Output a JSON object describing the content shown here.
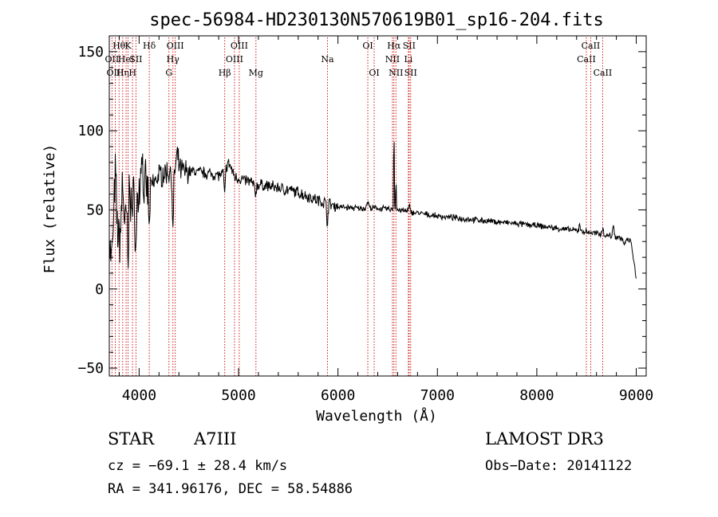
{
  "chart_data": {
    "type": "line",
    "title": "spec-56984-HD230130N570619B01_sp16-204.fits",
    "xlabel": "Wavelength (Å)",
    "ylabel": "Flux (relative)",
    "xlim": [
      3700,
      9100
    ],
    "ylim": [
      -55,
      160
    ],
    "x_ticks": [
      4000,
      5000,
      6000,
      7000,
      8000,
      9000
    ],
    "y_ticks": [
      -50,
      0,
      50,
      100,
      150
    ],
    "continuum": [
      [
        3700,
        35
      ],
      [
        3800,
        45
      ],
      [
        3900,
        52
      ],
      [
        4000,
        60
      ],
      [
        4100,
        63
      ],
      [
        4200,
        72
      ],
      [
        4300,
        74
      ],
      [
        4400,
        75
      ],
      [
        4600,
        74
      ],
      [
        4800,
        72
      ],
      [
        5000,
        70
      ],
      [
        5200,
        66
      ],
      [
        5400,
        64
      ],
      [
        5600,
        61
      ],
      [
        5800,
        56
      ],
      [
        6000,
        52
      ],
      [
        6200,
        51
      ],
      [
        6400,
        51
      ],
      [
        6600,
        50
      ],
      [
        6800,
        48
      ],
      [
        7000,
        46
      ],
      [
        7500,
        43
      ],
      [
        8000,
        40
      ],
      [
        8500,
        36
      ],
      [
        8800,
        33
      ],
      [
        8950,
        30
      ],
      [
        9000,
        5
      ]
    ],
    "features": [
      [
        3720,
        -20,
        10
      ],
      [
        3760,
        30,
        8
      ],
      [
        3800,
        -15,
        10
      ],
      [
        3835,
        20,
        8
      ],
      [
        3860,
        -10,
        8
      ],
      [
        3889,
        -40,
        6
      ],
      [
        3905,
        20,
        6
      ],
      [
        3934,
        -5,
        6
      ],
      [
        3968,
        -35,
        6
      ],
      [
        4026,
        30,
        8
      ],
      [
        4102,
        -25,
        6
      ],
      [
        4340,
        -40,
        6
      ],
      [
        4385,
        8,
        12
      ],
      [
        4861,
        -15,
        6
      ],
      [
        4900,
        8,
        30
      ],
      [
        5169,
        -6,
        10
      ],
      [
        5893,
        -12,
        6
      ],
      [
        6300,
        4,
        10
      ],
      [
        6563,
        55,
        3
      ],
      [
        6583,
        20,
        3
      ],
      [
        6716,
        4,
        6
      ],
      [
        8430,
        5,
        6
      ],
      [
        8660,
        4,
        8
      ],
      [
        8770,
        6,
        8
      ],
      [
        8880,
        -4,
        8
      ]
    ],
    "lines": [
      {
        "x": 3727,
        "label": "OII",
        "row": 1
      },
      {
        "x": 3760,
        "label": "OIII",
        "row": 2
      },
      {
        "x": 3798,
        "label": "Hθ",
        "row": 0
      },
      {
        "x": 3835,
        "label": "Hη",
        "row": 2
      },
      {
        "x": 3869,
        "label": "HeI",
        "row": 1
      },
      {
        "x": 3889,
        "label": "K",
        "row": 0
      },
      {
        "x": 3934,
        "label": "H",
        "row": 2
      },
      {
        "x": 3968,
        "label": "SII",
        "row": 1
      },
      {
        "x": 4102,
        "label": "Hδ",
        "row": 0
      },
      {
        "x": 4300,
        "label": "G",
        "row": 2
      },
      {
        "x": 4340,
        "label": "Hγ",
        "row": 1
      },
      {
        "x": 4363,
        "label": "OIII",
        "row": 0
      },
      {
        "x": 4861,
        "label": "Hβ",
        "row": 2
      },
      {
        "x": 4959,
        "label": "OIII",
        "row": 1
      },
      {
        "x": 5007,
        "label": "OIII",
        "row": 0
      },
      {
        "x": 5175,
        "label": "Mg",
        "row": 2
      },
      {
        "x": 5894,
        "label": "Na",
        "row": 1
      },
      {
        "x": 6300,
        "label": "OI",
        "row": 0
      },
      {
        "x": 6364,
        "label": "OI",
        "row": 2
      },
      {
        "x": 6548,
        "label": "NII",
        "row": 1
      },
      {
        "x": 6563,
        "label": "Hα",
        "row": 0
      },
      {
        "x": 6583,
        "label": "NII",
        "row": 2
      },
      {
        "x": 6708,
        "label": "Li",
        "row": 1
      },
      {
        "x": 6716,
        "label": "SII",
        "row": 0
      },
      {
        "x": 6731,
        "label": "SII",
        "row": 2
      },
      {
        "x": 8498,
        "label": "CaII",
        "row": 1
      },
      {
        "x": 8542,
        "label": "CaII",
        "row": 0
      },
      {
        "x": 8662,
        "label": "CaII",
        "row": 2
      }
    ]
  },
  "info": {
    "object_class": "STAR",
    "subclass": "A7III",
    "cz": "cz = −69.1 ± 28.4 km/s",
    "coords": "RA = 341.96176, DEC =  58.54886",
    "survey": "LAMOST DR3",
    "obs_date": "Obs−Date: 20141122"
  },
  "colors": {
    "lines": "#cc0000",
    "spectrum": "#000000",
    "axes": "#000000"
  }
}
